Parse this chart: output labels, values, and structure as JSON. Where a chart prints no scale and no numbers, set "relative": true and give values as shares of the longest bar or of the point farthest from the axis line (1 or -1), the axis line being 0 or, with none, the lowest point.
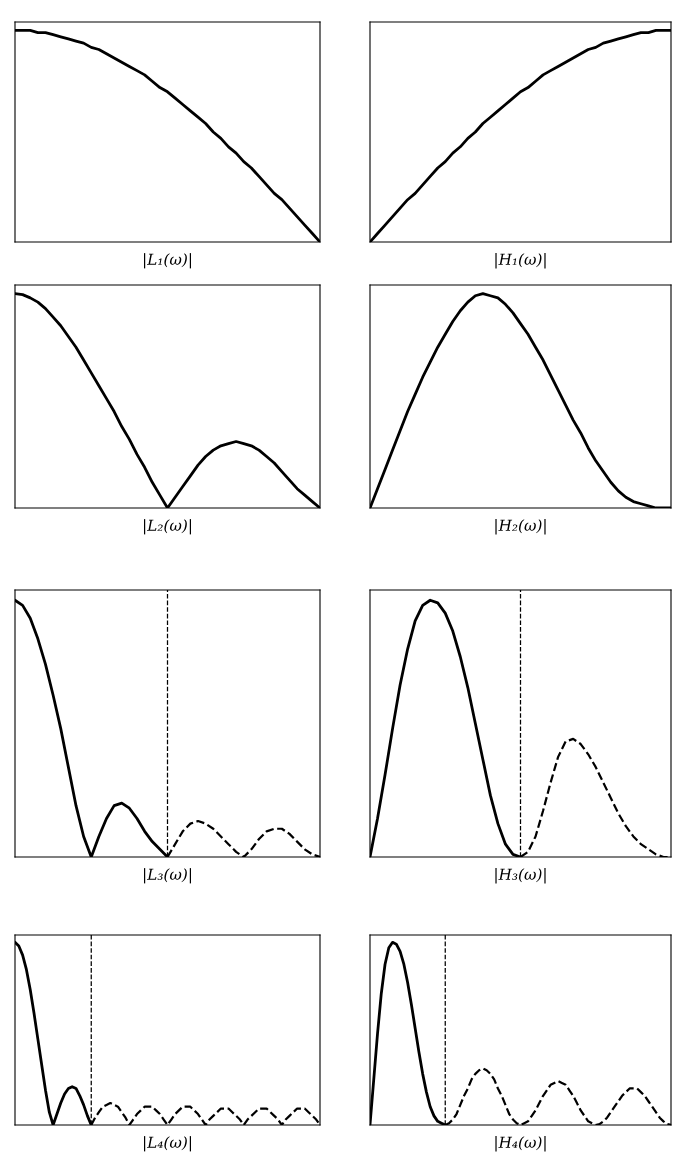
{
  "chart_data": [
    {
      "type": "line",
      "relative": true,
      "xlabel": "|L₁(ω)|",
      "categories": [
        null,
        null,
        null,
        null,
        null,
        null,
        null,
        null,
        null,
        null,
        null,
        null,
        null,
        null,
        null,
        null,
        null,
        null,
        null,
        null,
        null,
        null,
        null,
        null,
        null,
        null,
        null,
        null,
        null,
        null,
        null,
        null,
        null,
        null,
        null,
        null,
        null,
        null,
        null,
        null,
        null
      ],
      "series": [
        {
          "color": "#000000",
          "line_style": "solid",
          "values": [
            1,
            1,
            1,
            0.99,
            0.99,
            0.98,
            0.97,
            0.96,
            0.95,
            0.94,
            0.92,
            0.91,
            0.89,
            0.87,
            0.85,
            0.83,
            0.81,
            0.79,
            0.76,
            0.73,
            0.71,
            0.68,
            0.65,
            0.62,
            0.59,
            0.56,
            0.52,
            0.49,
            0.45,
            0.42,
            0.38,
            0.35,
            0.31,
            0.27,
            0.23,
            0.2,
            0.16,
            0.12,
            0.08,
            0.04,
            0
          ]
        }
      ]
    },
    {
      "type": "line",
      "relative": true,
      "xlabel": "|H₁(ω)|",
      "categories": [
        null,
        null,
        null,
        null,
        null,
        null,
        null,
        null,
        null,
        null,
        null,
        null,
        null,
        null,
        null,
        null,
        null,
        null,
        null,
        null,
        null,
        null,
        null,
        null,
        null,
        null,
        null,
        null,
        null,
        null,
        null,
        null,
        null,
        null,
        null,
        null,
        null,
        null,
        null,
        null,
        null
      ],
      "series": [
        {
          "color": "#000000",
          "line_style": "solid",
          "values": [
            0,
            0.04,
            0.08,
            0.12,
            0.16,
            0.2,
            0.23,
            0.27,
            0.31,
            0.35,
            0.38,
            0.42,
            0.45,
            0.49,
            0.52,
            0.56,
            0.59,
            0.62,
            0.65,
            0.68,
            0.71,
            0.73,
            0.76,
            0.79,
            0.81,
            0.83,
            0.85,
            0.87,
            0.89,
            0.91,
            0.92,
            0.94,
            0.95,
            0.96,
            0.97,
            0.98,
            0.99,
            0.99,
            1,
            1,
            1
          ]
        }
      ]
    },
    {
      "type": "line",
      "relative": true,
      "xlabel": "|L₂(ω)|",
      "categories": [
        null,
        null,
        null,
        null,
        null,
        null,
        null,
        null,
        null,
        null,
        null,
        null,
        null,
        null,
        null,
        null,
        null,
        null,
        null,
        null,
        null,
        null,
        null,
        null,
        null,
        null,
        null,
        null,
        null,
        null,
        null,
        null,
        null,
        null,
        null,
        null,
        null,
        null,
        null,
        null,
        null
      ],
      "series": [
        {
          "color": "#000000",
          "line_style": "solid",
          "values": [
            1,
            0.995,
            0.98,
            0.96,
            0.93,
            0.89,
            0.85,
            0.8,
            0.75,
            0.69,
            0.63,
            0.57,
            0.51,
            0.45,
            0.38,
            0.32,
            0.25,
            0.19,
            0.12,
            0.06,
            0,
            0.05,
            0.1,
            0.15,
            0.2,
            0.24,
            0.27,
            0.29,
            0.3,
            0.31,
            0.3,
            0.29,
            0.27,
            0.24,
            0.21,
            0.17,
            0.13,
            0.09,
            0.06,
            0.03,
            0
          ]
        }
      ]
    },
    {
      "type": "line",
      "relative": true,
      "xlabel": "|H₂(ω)|",
      "categories": [
        null,
        null,
        null,
        null,
        null,
        null,
        null,
        null,
        null,
        null,
        null,
        null,
        null,
        null,
        null,
        null,
        null,
        null,
        null,
        null,
        null,
        null,
        null,
        null,
        null,
        null,
        null,
        null,
        null,
        null,
        null,
        null,
        null,
        null,
        null,
        null,
        null,
        null,
        null,
        null,
        null
      ],
      "series": [
        {
          "color": "#000000",
          "line_style": "solid",
          "values": [
            0,
            0.09,
            0.18,
            0.27,
            0.36,
            0.45,
            0.53,
            0.61,
            0.68,
            0.75,
            0.81,
            0.87,
            0.92,
            0.96,
            0.99,
            1,
            0.99,
            0.98,
            0.95,
            0.91,
            0.86,
            0.81,
            0.75,
            0.69,
            0.62,
            0.55,
            0.48,
            0.41,
            0.35,
            0.28,
            0.22,
            0.17,
            0.12,
            0.08,
            0.05,
            0.03,
            0.02,
            0.01,
            0,
            0,
            0
          ]
        }
      ]
    },
    {
      "type": "line",
      "relative": true,
      "xlabel": "|L₃(ω)|",
      "categories": [
        null,
        null,
        null,
        null,
        null,
        null,
        null,
        null,
        null,
        null,
        null,
        null,
        null,
        null,
        null,
        null,
        null,
        null,
        null,
        null,
        null,
        null,
        null,
        null,
        null,
        null,
        null,
        null,
        null,
        null,
        null,
        null,
        null,
        null,
        null,
        null,
        null,
        null,
        null,
        null,
        null
      ],
      "series": [
        {
          "color": "#000000",
          "line_style": "solid",
          "values": [
            1,
            0.98,
            0.93,
            0.85,
            0.75,
            0.63,
            0.5,
            0.35,
            0.2,
            0.08,
            0,
            0.08,
            0.15,
            0.2,
            0.21,
            0.19,
            0.15,
            0.1,
            0.06,
            0.03,
            0,
            null,
            null,
            null,
            null,
            null,
            null,
            null,
            null,
            null,
            null,
            null,
            null,
            null,
            null,
            null,
            null,
            null,
            null,
            null,
            null
          ]
        },
        {
          "color": "#000000",
          "line_style": "dashed",
          "values": [
            null,
            null,
            null,
            null,
            null,
            null,
            null,
            null,
            null,
            null,
            null,
            null,
            null,
            null,
            null,
            null,
            null,
            null,
            null,
            null,
            0,
            0.05,
            0.1,
            0.13,
            0.14,
            0.13,
            0.11,
            0.08,
            0.05,
            0.02,
            0,
            0.03,
            0.07,
            0.1,
            0.11,
            0.11,
            0.09,
            0.06,
            0.03,
            0.01,
            0
          ]
        }
      ]
    },
    {
      "type": "line",
      "relative": true,
      "xlabel": "|H₃(ω)|",
      "categories": [
        null,
        null,
        null,
        null,
        null,
        null,
        null,
        null,
        null,
        null,
        null,
        null,
        null,
        null,
        null,
        null,
        null,
        null,
        null,
        null,
        null,
        null,
        null,
        null,
        null,
        null,
        null,
        null,
        null,
        null,
        null,
        null,
        null,
        null,
        null,
        null,
        null,
        null,
        null,
        null,
        null
      ],
      "series": [
        {
          "color": "#000000",
          "line_style": "solid",
          "values": [
            0,
            0.15,
            0.32,
            0.5,
            0.67,
            0.81,
            0.92,
            0.98,
            1,
            0.99,
            0.95,
            0.88,
            0.78,
            0.66,
            0.52,
            0.38,
            0.24,
            0.13,
            0.05,
            0.01,
            0,
            null,
            null,
            null,
            null,
            null,
            null,
            null,
            null,
            null,
            null,
            null,
            null,
            null,
            null,
            null,
            null,
            null,
            null,
            null,
            null
          ]
        },
        {
          "color": "#000000",
          "line_style": "dashed",
          "values": [
            null,
            null,
            null,
            null,
            null,
            null,
            null,
            null,
            null,
            null,
            null,
            null,
            null,
            null,
            null,
            null,
            null,
            null,
            null,
            null,
            0,
            0.02,
            0.08,
            0.18,
            0.29,
            0.39,
            0.45,
            0.46,
            0.44,
            0.4,
            0.35,
            0.29,
            0.23,
            0.17,
            0.12,
            0.08,
            0.05,
            0.03,
            0.01,
            0,
            0
          ]
        }
      ]
    },
    {
      "type": "line",
      "relative": true,
      "xlabel": "|L₄(ω)|",
      "categories": [
        null,
        null,
        null,
        null,
        null,
        null,
        null,
        null,
        null,
        null,
        null,
        null,
        null,
        null,
        null,
        null,
        null,
        null,
        null,
        null,
        null,
        null,
        null,
        null,
        null,
        null,
        null,
        null,
        null,
        null,
        null,
        null,
        null,
        null,
        null,
        null,
        null,
        null,
        null,
        null,
        null,
        null,
        null,
        null,
        null,
        null,
        null,
        null,
        null,
        null,
        null,
        null,
        null,
        null,
        null,
        null,
        null,
        null,
        null,
        null,
        null,
        null,
        null,
        null,
        null,
        null,
        null,
        null,
        null,
        null,
        null,
        null,
        null,
        null,
        null,
        null,
        null,
        null,
        null,
        null,
        null
      ],
      "series": [
        {
          "color": "#000000",
          "line_style": "solid",
          "values": [
            1,
            0.98,
            0.93,
            0.85,
            0.74,
            0.61,
            0.47,
            0.33,
            0.19,
            0.07,
            0,
            0.06,
            0.12,
            0.17,
            0.2,
            0.21,
            0.2,
            0.16,
            0.11,
            0.05,
            0,
            null,
            null,
            null,
            null,
            null,
            null,
            null,
            null,
            null,
            null,
            null,
            null,
            null,
            null,
            null,
            null,
            null,
            null,
            null,
            null,
            null,
            null,
            null,
            null,
            null,
            null,
            null,
            null,
            null,
            null,
            null,
            null,
            null,
            null,
            null,
            null,
            null,
            null,
            null,
            null,
            null,
            null,
            null,
            null,
            null,
            null,
            null,
            null,
            null,
            null,
            null,
            null,
            null,
            null,
            null,
            null,
            null,
            null,
            null,
            null
          ]
        },
        {
          "color": "#000000",
          "line_style": "dashed",
          "values": [
            null,
            null,
            null,
            null,
            null,
            null,
            null,
            null,
            null,
            null,
            null,
            null,
            null,
            null,
            null,
            null,
            null,
            null,
            null,
            null,
            0,
            0.04,
            0.07,
            0.1,
            0.11,
            0.12,
            0.11,
            0.1,
            0.07,
            0.04,
            0,
            0.03,
            0.06,
            0.08,
            0.1,
            0.1,
            0.1,
            0.08,
            0.06,
            0.03,
            0,
            0.03,
            0.06,
            0.08,
            0.1,
            0.1,
            0.1,
            0.08,
            0.06,
            0.03,
            0,
            0.03,
            0.05,
            0.07,
            0.09,
            0.09,
            0.09,
            0.07,
            0.05,
            0.03,
            0,
            0.03,
            0.05,
            0.07,
            0.09,
            0.09,
            0.09,
            0.07,
            0.05,
            0.03,
            0,
            0.03,
            0.05,
            0.07,
            0.09,
            0.09,
            0.09,
            0.07,
            0.05,
            0.03,
            0
          ]
        }
      ]
    },
    {
      "type": "line",
      "relative": true,
      "xlabel": "|H₄(ω)|",
      "categories": [
        null,
        null,
        null,
        null,
        null,
        null,
        null,
        null,
        null,
        null,
        null,
        null,
        null,
        null,
        null,
        null,
        null,
        null,
        null,
        null,
        null,
        null,
        null,
        null,
        null,
        null,
        null,
        null,
        null,
        null,
        null,
        null,
        null,
        null,
        null,
        null,
        null,
        null,
        null,
        null,
        null,
        null,
        null,
        null,
        null,
        null,
        null,
        null,
        null,
        null,
        null,
        null,
        null,
        null,
        null,
        null,
        null,
        null,
        null,
        null,
        null,
        null,
        null,
        null,
        null,
        null,
        null,
        null,
        null,
        null,
        null,
        null,
        null,
        null,
        null,
        null,
        null,
        null,
        null,
        null,
        null
      ],
      "series": [
        {
          "color": "#000000",
          "line_style": "solid",
          "values": [
            0,
            0.25,
            0.5,
            0.72,
            0.88,
            0.97,
            1,
            0.99,
            0.95,
            0.88,
            0.78,
            0.66,
            0.53,
            0.4,
            0.28,
            0.18,
            0.1,
            0.05,
            0.02,
            0.01,
            0,
            null,
            null,
            null,
            null,
            null,
            null,
            null,
            null,
            null,
            null,
            null,
            null,
            null,
            null,
            null,
            null,
            null,
            null,
            null,
            null,
            null,
            null,
            null,
            null,
            null,
            null,
            null,
            null,
            null,
            null,
            null,
            null,
            null,
            null,
            null,
            null,
            null,
            null,
            null,
            null,
            null,
            null,
            null,
            null,
            null,
            null,
            null,
            null,
            null,
            null,
            null,
            null,
            null,
            null,
            null,
            null,
            null,
            null,
            null,
            null
          ]
        },
        {
          "color": "#000000",
          "line_style": "dashed",
          "values": [
            null,
            null,
            null,
            null,
            null,
            null,
            null,
            null,
            null,
            null,
            null,
            null,
            null,
            null,
            null,
            null,
            null,
            null,
            null,
            null,
            0,
            0.01,
            0.03,
            0.06,
            0.11,
            0.16,
            0.2,
            0.25,
            0.28,
            0.3,
            0.31,
            0.3,
            0.28,
            0.25,
            0.2,
            0.16,
            0.11,
            0.06,
            0.03,
            0.01,
            0,
            0.01,
            0.02,
            0.05,
            0.08,
            0.12,
            0.16,
            0.19,
            0.22,
            0.23,
            0.24,
            0.23,
            0.22,
            0.19,
            0.16,
            0.12,
            0.08,
            0.05,
            0.02,
            0.01,
            0,
            0.005,
            0.02,
            0.04,
            0.07,
            0.1,
            0.13,
            0.16,
            0.18,
            0.2,
            0.2,
            0.2,
            0.18,
            0.16,
            0.13,
            0.1,
            0.07,
            0.04,
            0.02,
            0.005,
            0
          ]
        }
      ]
    }
  ]
}
